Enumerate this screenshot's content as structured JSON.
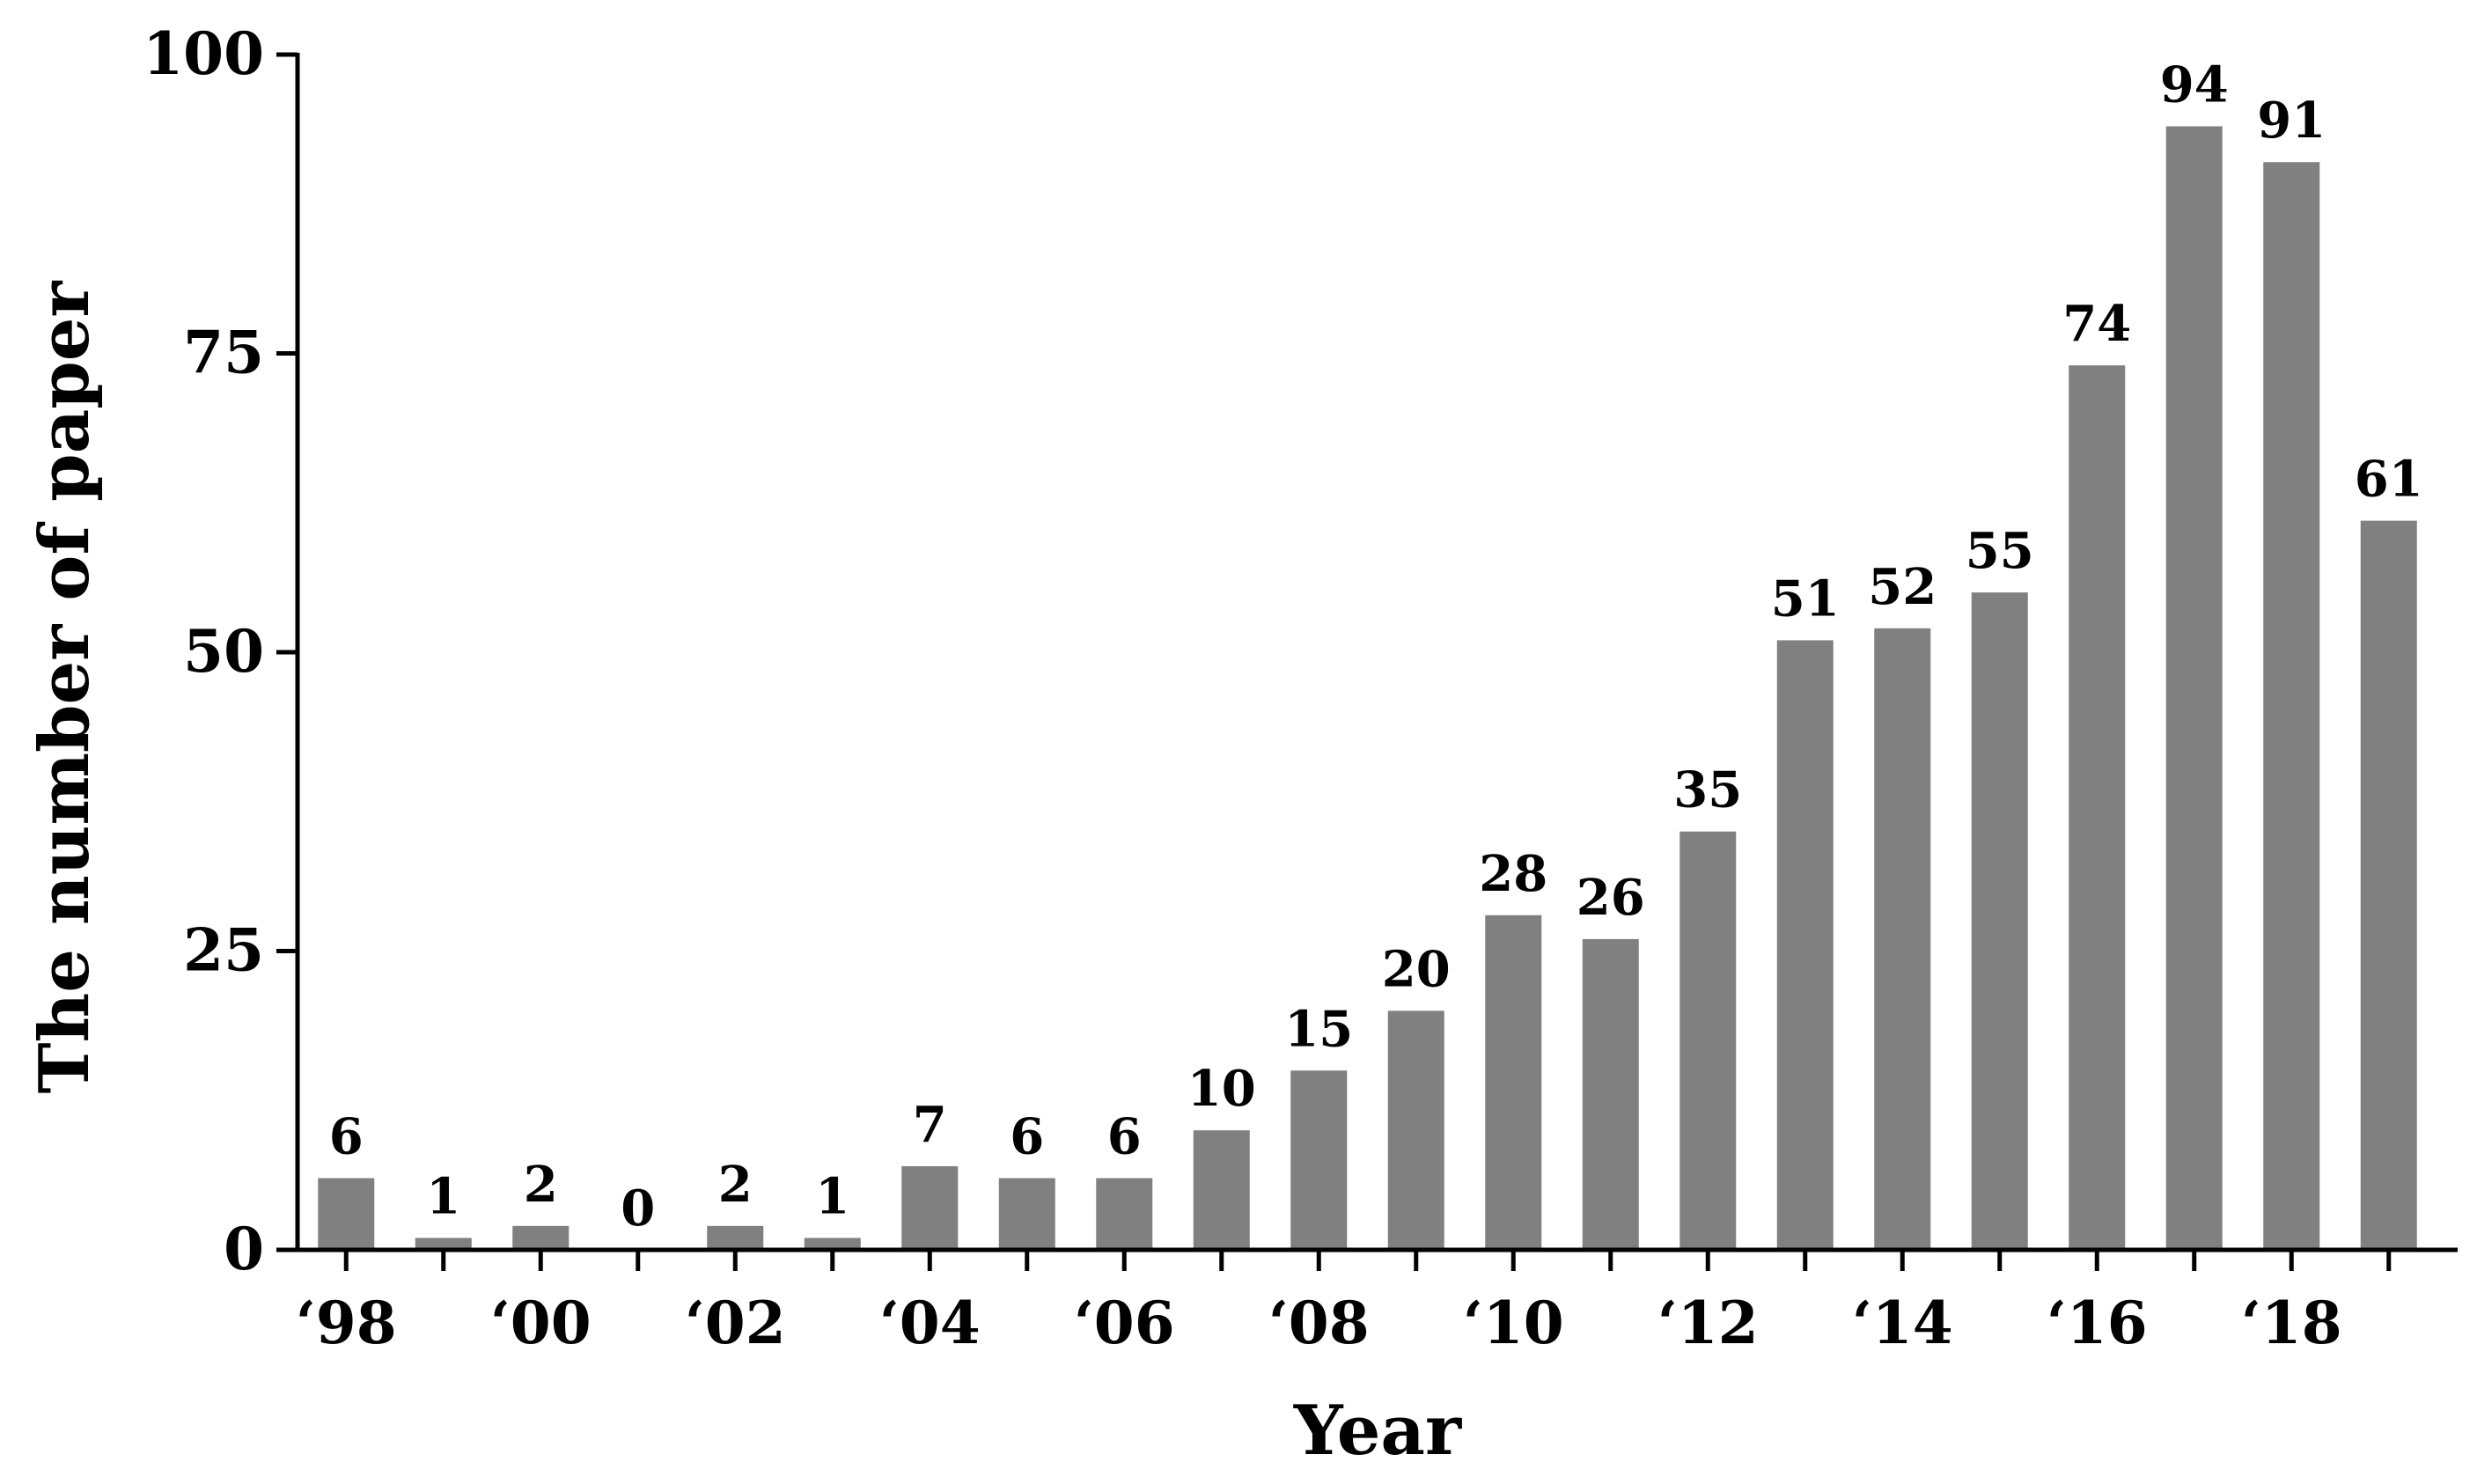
{
  "chart_data": {
    "type": "bar",
    "xlabel": "Year",
    "ylabel": "The number of paper",
    "ylim": [
      0,
      100
    ],
    "yticks": [
      0,
      25,
      50,
      75,
      100
    ],
    "categories": [
      "1998",
      "1999",
      "2000",
      "2001",
      "2002",
      "2003",
      "2004",
      "2005",
      "2006",
      "2007",
      "2008",
      "2009",
      "2010",
      "2011",
      "2012",
      "2013",
      "2014",
      "2015",
      "2016",
      "2017",
      "2018",
      "2019"
    ],
    "values": [
      6,
      1,
      2,
      0,
      2,
      1,
      7,
      6,
      6,
      10,
      15,
      20,
      28,
      26,
      35,
      51,
      52,
      55,
      74,
      94,
      91,
      61
    ],
    "data_labels": [
      "6",
      "1",
      "2",
      "0",
      "2",
      "1",
      "7",
      "6",
      "6",
      "10",
      "15",
      "20",
      "28",
      "26",
      "35",
      "51",
      "52",
      "55",
      "74",
      "94",
      "91",
      "61"
    ],
    "xtick_labels": [
      "‘98",
      "‘00",
      "‘02",
      "‘04",
      "‘06",
      "‘08",
      "‘10",
      "‘12",
      "‘14",
      "‘16",
      "‘18"
    ],
    "xtick_label_every": 2,
    "bar_color": "#808080",
    "grid": false,
    "legend": "none"
  }
}
